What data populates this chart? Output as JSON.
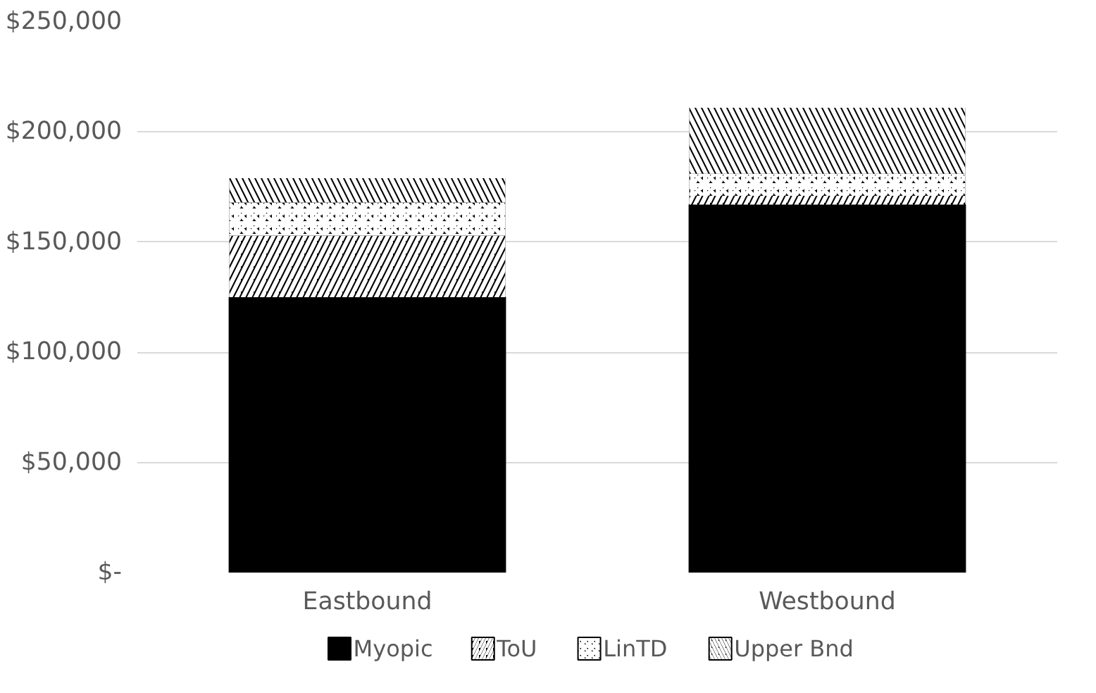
{
  "chart_data": {
    "type": "bar",
    "stacked": true,
    "categories": [
      "Eastbound",
      "Westbound"
    ],
    "series": [
      {
        "name": "Myopic",
        "color": "#000000",
        "values": [
          125000,
          167000
        ]
      },
      {
        "name": "ToU",
        "color": "#000000",
        "values": [
          28000,
          4000
        ]
      },
      {
        "name": "LinTD",
        "color": "#000000",
        "values": [
          15000,
          10000
        ]
      },
      {
        "name": "Upper Bnd",
        "color": "#000000",
        "values": [
          11000,
          30000
        ]
      }
    ],
    "ylim": [
      0,
      250000
    ],
    "yticks": [
      {
        "value": 0,
        "label": "$-"
      },
      {
        "value": 50000,
        "label": "$50,000"
      },
      {
        "value": 100000,
        "label": "$100,000"
      },
      {
        "value": 150000,
        "label": "$150,000"
      },
      {
        "value": 200000,
        "label": "$200,000"
      },
      {
        "value": 250000,
        "label": "$250,000"
      }
    ],
    "grid": "y",
    "legend": "bottom"
  }
}
